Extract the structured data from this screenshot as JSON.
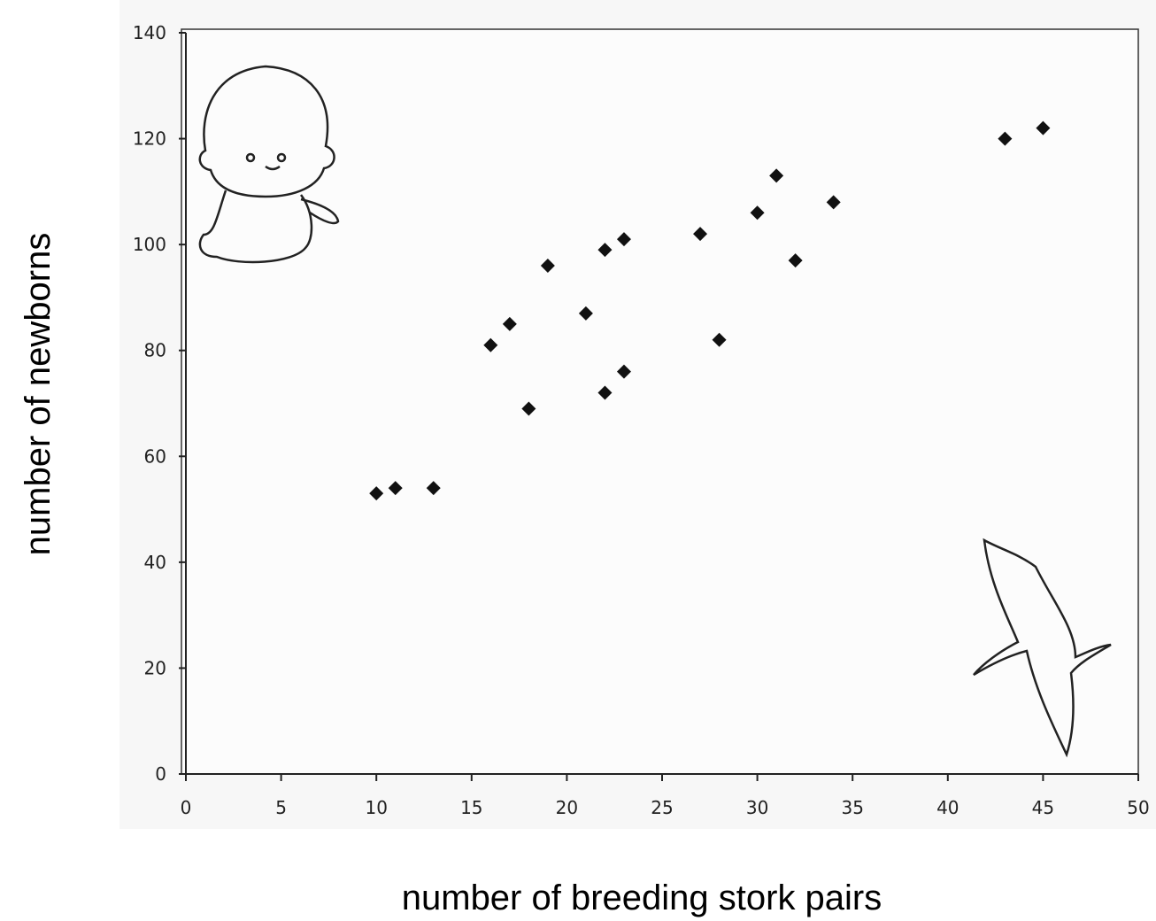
{
  "chart_data": {
    "type": "scatter",
    "x_label": "number of breeding stork pairs",
    "y_label": "number of newborns",
    "x": [
      10,
      11,
      13,
      16,
      17,
      18,
      19,
      21,
      22,
      22,
      23,
      23,
      27,
      28,
      30,
      31,
      32,
      34,
      43,
      45
    ],
    "series": [
      {
        "color": "#111111",
        "values": [
          53,
          54,
          54,
          81,
          85,
          69,
          96,
          87,
          99,
          72,
          101,
          76,
          102,
          82,
          106,
          113,
          97,
          108,
          120,
          122
        ]
      }
    ],
    "xlim": [
      0,
      50
    ],
    "xticks": [
      0,
      5,
      10,
      15,
      20,
      25,
      30,
      35,
      40,
      45,
      50
    ],
    "ylim": [
      0,
      140
    ],
    "yticks": [
      0,
      20,
      40,
      60,
      80,
      100,
      120,
      140
    ],
    "grid": false
  }
}
